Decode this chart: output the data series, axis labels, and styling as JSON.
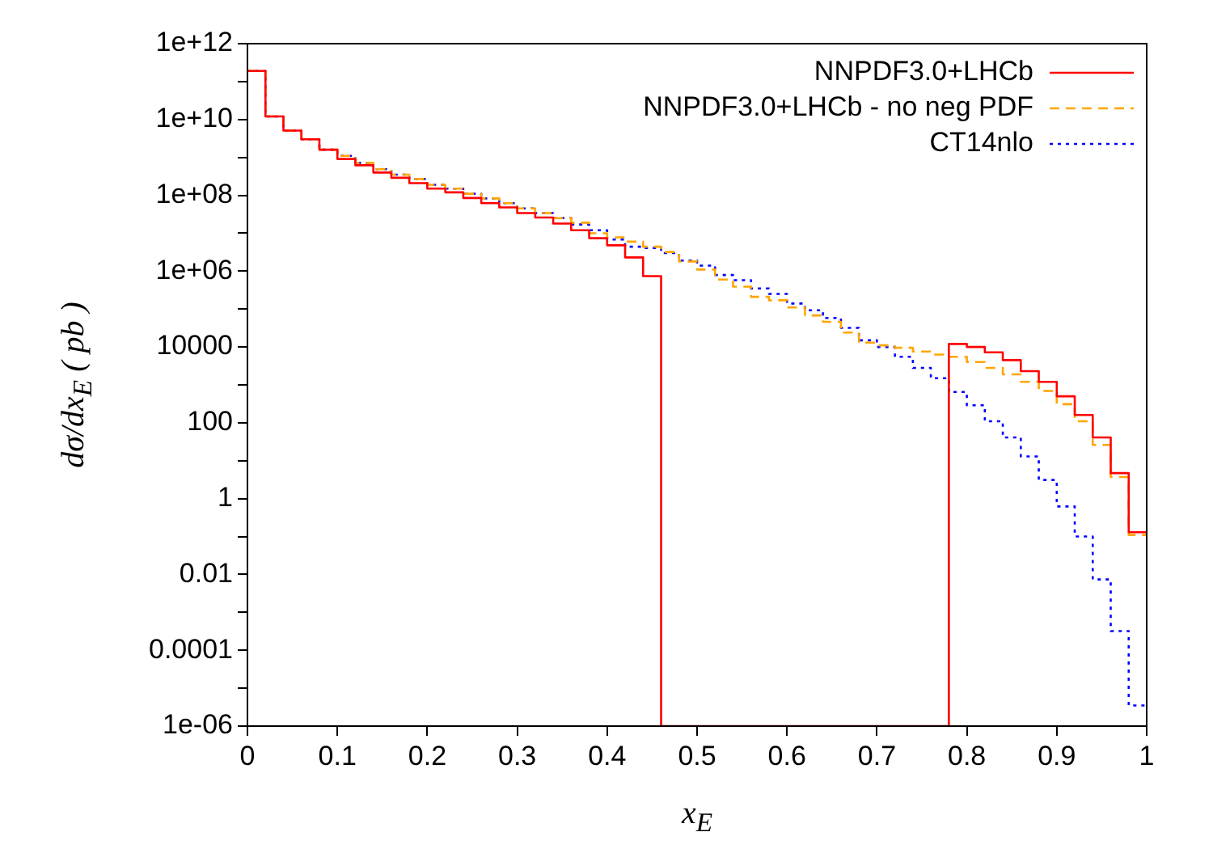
{
  "chart_data": {
    "type": "histogram",
    "xlabel": "x$_{E}$",
    "ylabel": "dσ/dx$_{E}$ ( pb )",
    "bins": [
      0,
      0.02,
      0.04,
      0.06,
      0.08,
      0.1,
      0.12,
      0.14,
      0.16,
      0.18,
      0.2,
      0.22,
      0.24,
      0.26,
      0.28,
      0.3,
      0.32,
      0.34,
      0.36,
      0.38,
      0.4,
      0.42,
      0.44,
      0.46,
      0.48,
      0.5,
      0.52,
      0.54,
      0.56,
      0.58,
      0.6,
      0.62,
      0.64,
      0.66,
      0.68,
      0.7,
      0.72,
      0.74,
      0.76,
      0.78,
      0.8,
      0.82,
      0.84,
      0.86,
      0.88,
      0.9,
      0.92,
      0.94,
      0.96,
      0.98,
      1
    ],
    "series": [
      {
        "name": "NNPDF3.0+LHCb",
        "color": "#ff0000",
        "line_style": "solid",
        "values": [
          190000000000.0,
          12000000000.0,
          5100000000.0,
          3000000000.0,
          1600000000.0,
          910000000.0,
          620000000.0,
          400000000.0,
          290000000.0,
          210000000.0,
          150000000.0,
          120000000.0,
          85000000.0,
          62000000.0,
          48000000.0,
          34000000.0,
          26000000.0,
          18000000.0,
          12000000.0,
          7400000.0,
          4800000.0,
          2300000.0,
          740000.0,
          1e-06,
          1e-06,
          1e-06,
          1e-06,
          1e-06,
          1e-06,
          1e-06,
          1e-06,
          1e-06,
          1e-06,
          1e-06,
          1e-06,
          1e-06,
          1e-06,
          1e-06,
          1e-06,
          12000,
          10000,
          7200,
          4500,
          2300,
          1200,
          500,
          160,
          41,
          4.7,
          0.13
        ]
      },
      {
        "name": "NNPDF3.0+LHCb - no neg PDF",
        "color": "#ffa500",
        "line_style": "dashed",
        "values": [
          190000000000.0,
          12000000000.0,
          5100000000.0,
          3000000000.0,
          1600000000.0,
          1100000000.0,
          720000000.0,
          490000000.0,
          350000000.0,
          270000000.0,
          190000000.0,
          150000000.0,
          110000000.0,
          83000000.0,
          62000000.0,
          45000000.0,
          34000000.0,
          25000000.0,
          19000000.0,
          10000000.0,
          7800000.0,
          6000000.0,
          4400000.0,
          3200000.0,
          1800000.0,
          1100000.0,
          600000.0,
          390000.0,
          210000.0,
          170000.0,
          110000.0,
          68000.0,
          46000.0,
          24000.0,
          13000.0,
          11000.0,
          9500,
          7600,
          6300,
          5500,
          4000,
          2800,
          1900,
          1200,
          690,
          310,
          110,
          26,
          3.7,
          0.11
        ]
      },
      {
        "name": "CT14nlo",
        "color": "#0000ff",
        "line_style": "dotted",
        "values": [
          190000000000.0,
          12000000000.0,
          5100000000.0,
          3000000000.0,
          1600000000.0,
          1100000000.0,
          720000000.0,
          490000000.0,
          350000000.0,
          270000000.0,
          190000000.0,
          150000000.0,
          110000000.0,
          83000000.0,
          62000000.0,
          45000000.0,
          34000000.0,
          25000000.0,
          17000000.0,
          12000000.0,
          6800000.0,
          4400000.0,
          4100000.0,
          3000000.0,
          1900000.0,
          1400000.0,
          790000.0,
          580000.0,
          350000.0,
          250000.0,
          140000.0,
          93000.0,
          58000.0,
          32000.0,
          15000.0,
          10000.0,
          5500,
          2800,
          1500,
          650,
          290,
          110,
          41,
          13,
          3.1,
          0.62,
          0.1,
          0.0074,
          0.00032,
          3.5e-06
        ]
      }
    ],
    "xlim": [
      0,
      1
    ],
    "xticks": [
      0,
      0.1,
      0.2,
      0.3,
      0.4,
      0.5,
      0.6,
      0.7,
      0.8,
      0.9,
      1
    ],
    "ylim": [
      1e-06,
      1000000000000.0
    ],
    "yticks": [
      {
        "value": 1e-06,
        "label": "1e-06"
      },
      {
        "value": 1e-05,
        "label": null
      },
      {
        "value": 0.0001,
        "label": "0.0001"
      },
      {
        "value": 0.001,
        "label": null
      },
      {
        "value": 0.01,
        "label": "0.01"
      },
      {
        "value": 0.1,
        "label": null
      },
      {
        "value": 1,
        "label": "1"
      },
      {
        "value": 10,
        "label": null
      },
      {
        "value": 100,
        "label": "100"
      },
      {
        "value": 1000,
        "label": null
      },
      {
        "value": 10000,
        "label": "10000"
      },
      {
        "value": 100000.0,
        "label": null
      },
      {
        "value": 1000000.0,
        "label": "1e+06"
      },
      {
        "value": 10000000.0,
        "label": null
      },
      {
        "value": 100000000.0,
        "label": "1e+08"
      },
      {
        "value": 1000000000.0,
        "label": null
      },
      {
        "value": 10000000000.0,
        "label": "1e+10"
      },
      {
        "value": 100000000000.0,
        "label": null
      },
      {
        "value": 1000000000000.0,
        "label": "1e+12"
      }
    ],
    "log": "y",
    "grid": false,
    "legend": "top right"
  }
}
